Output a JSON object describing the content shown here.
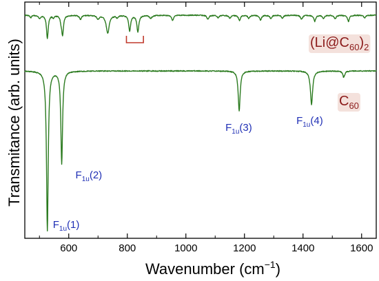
{
  "chart_data": {
    "type": "line",
    "xlabel": "Wavenumber (cm",
    "xlabel_sup": "−1",
    "xlabel_close": ")",
    "ylabel": "Transmitance (arb. units)",
    "xlim": [
      450,
      1650
    ],
    "x_ticks": [
      600,
      800,
      1000,
      1200,
      1400,
      1600
    ],
    "x_tick_labels": [
      "600",
      "800",
      "1000",
      "1200",
      "1400",
      "1600"
    ],
    "y_axis_values_shown": false,
    "grid": false,
    "line_color": "#2a7a1e",
    "axis_color": "#000000",
    "series": [
      {
        "name": "(Li@C60)2",
        "label_parts": {
          "pre": "(Li@C",
          "sub": "60",
          "post": ")",
          "sub2": "2"
        },
        "label_color": "#8b1a1a",
        "label_bg": "#f2dcd6",
        "baseline": 0.0,
        "peaks": [
          {
            "x": 470,
            "depth": 0.05,
            "width": 3
          },
          {
            "x": 500,
            "depth": 0.06,
            "width": 4
          },
          {
            "x": 527,
            "depth": 0.45,
            "width": 3.5
          },
          {
            "x": 548,
            "depth": 0.05,
            "width": 3
          },
          {
            "x": 574,
            "depth": 0.1,
            "width": 3
          },
          {
            "x": 579,
            "depth": 0.38,
            "width": 3.5
          },
          {
            "x": 640,
            "depth": 0.08,
            "width": 4
          },
          {
            "x": 700,
            "depth": 0.07,
            "width": 5
          },
          {
            "x": 733,
            "depth": 0.35,
            "width": 6
          },
          {
            "x": 765,
            "depth": 0.04,
            "width": 4
          },
          {
            "x": 808,
            "depth": 0.3,
            "width": 4
          },
          {
            "x": 836,
            "depth": 0.32,
            "width": 4
          },
          {
            "x": 880,
            "depth": 0.06,
            "width": 5
          },
          {
            "x": 955,
            "depth": 0.1,
            "width": 4
          },
          {
            "x": 1075,
            "depth": 0.08,
            "width": 4
          },
          {
            "x": 1110,
            "depth": 0.05,
            "width": 4
          },
          {
            "x": 1150,
            "depth": 0.06,
            "width": 4
          },
          {
            "x": 1183,
            "depth": 0.1,
            "width": 4
          },
          {
            "x": 1215,
            "depth": 0.06,
            "width": 4
          },
          {
            "x": 1255,
            "depth": 0.09,
            "width": 4
          },
          {
            "x": 1290,
            "depth": 0.06,
            "width": 4
          },
          {
            "x": 1330,
            "depth": 0.06,
            "width": 4
          },
          {
            "x": 1395,
            "depth": 0.08,
            "width": 4
          },
          {
            "x": 1440,
            "depth": 0.12,
            "width": 4
          },
          {
            "x": 1470,
            "depth": 0.06,
            "width": 4
          },
          {
            "x": 1510,
            "depth": 0.07,
            "width": 4
          },
          {
            "x": 1555,
            "depth": 0.12,
            "width": 4
          },
          {
            "x": 1610,
            "depth": 0.05,
            "width": 4
          }
        ]
      },
      {
        "name": "C60",
        "label_parts": {
          "pre": "C",
          "sub": "60",
          "post": "",
          "sub2": ""
        },
        "label_color": "#8b1a1a",
        "label_bg": "#f2dcd6",
        "baseline": 0.0,
        "peaks": [
          {
            "x": 527,
            "depth": 1.0,
            "width": 3.5
          },
          {
            "x": 576,
            "depth": 0.58,
            "width": 3.5
          },
          {
            "x": 1182,
            "depth": 0.25,
            "width": 4
          },
          {
            "x": 1429,
            "depth": 0.21,
            "width": 4.5
          },
          {
            "x": 1539,
            "depth": 0.04,
            "width": 4
          }
        ]
      }
    ],
    "annotations": [
      {
        "text": "F",
        "sub": "1u",
        "suffix": "(1)",
        "x": 527,
        "color": "#1f2fb5"
      },
      {
        "text": "F",
        "sub": "1u",
        "suffix": "(2)",
        "x": 576,
        "color": "#1f2fb5"
      },
      {
        "text": "F",
        "sub": "1u",
        "suffix": "(3)",
        "x": 1182,
        "color": "#1f2fb5"
      },
      {
        "text": "F",
        "sub": "1u",
        "suffix": "(4)",
        "x": 1429,
        "color": "#1f2fb5"
      }
    ],
    "bracket": {
      "x_start": 797,
      "x_end": 855,
      "color": "#c0392b"
    }
  }
}
